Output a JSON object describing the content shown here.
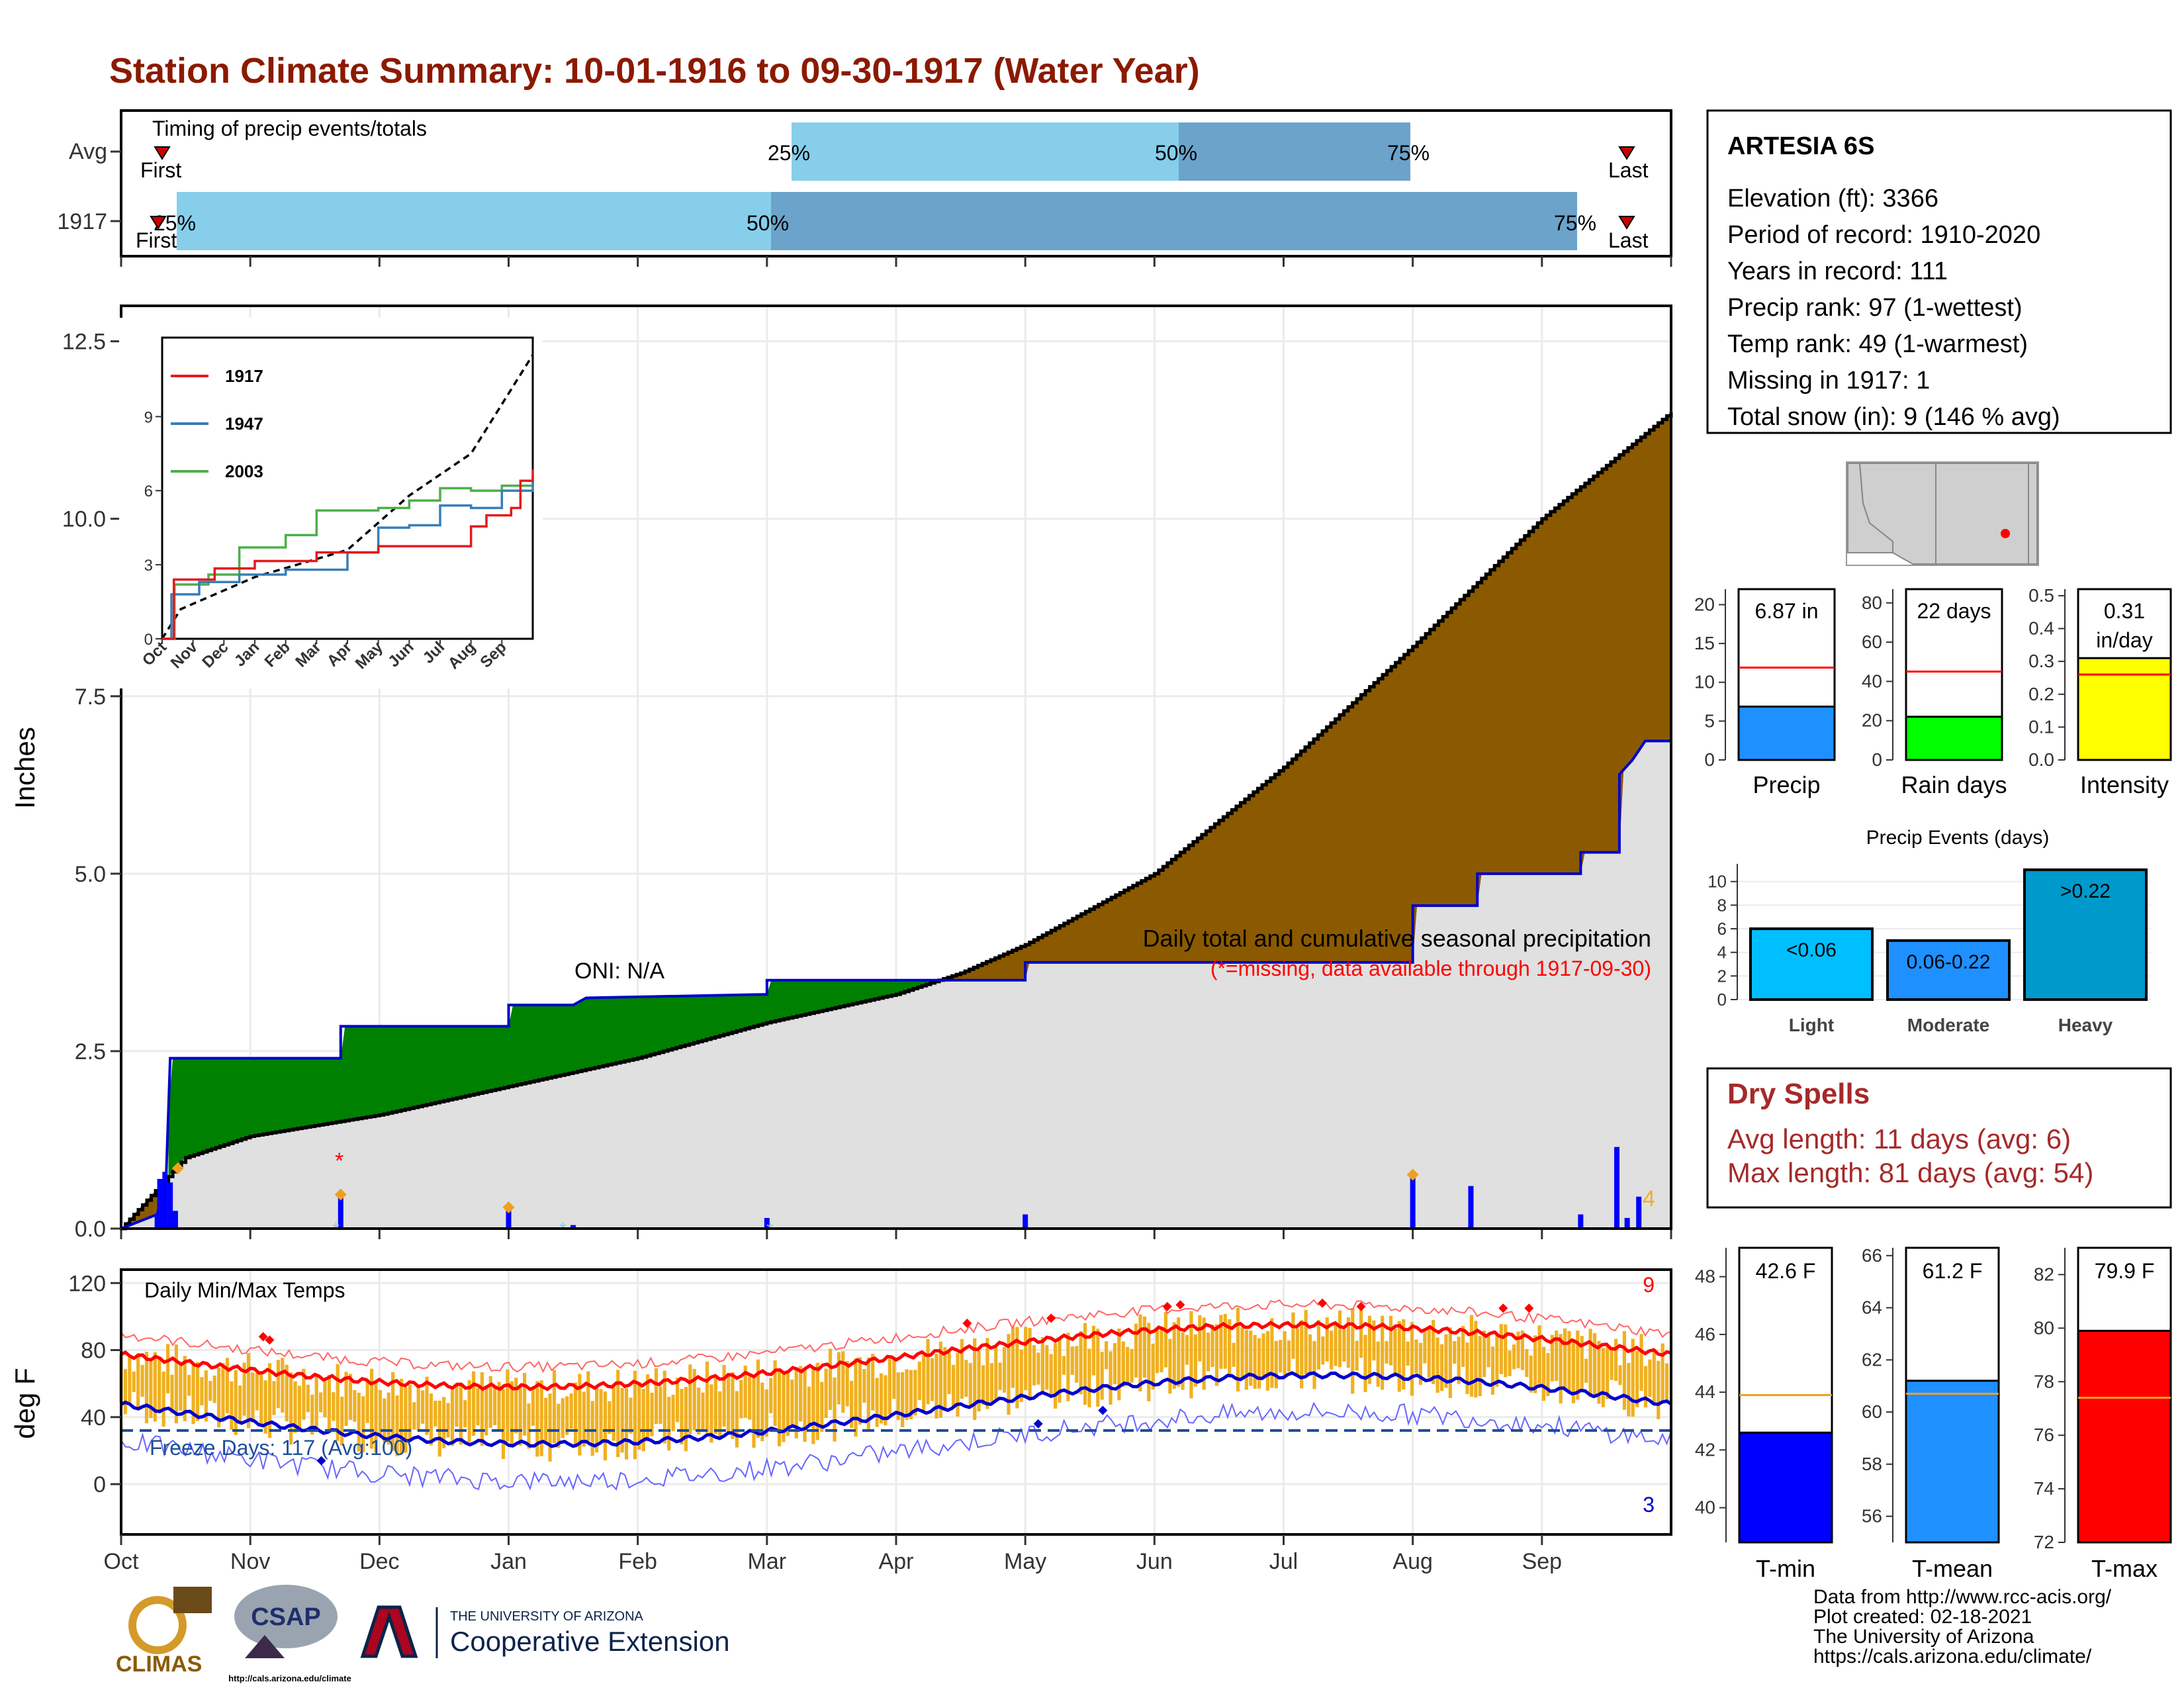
{
  "title": "Station Climate Summary: 10-01-1916 to 09-30-1917 (Water Year)",
  "colors": {
    "title": "#8B1A00",
    "light_blue": "#87CEEB",
    "mid_blue": "#6BA3CB",
    "brown": "#8B5A00",
    "green": "#008000",
    "gray_fill": "#E0E0E0",
    "blue_line": "#0000CC",
    "orange": "#F0B020",
    "red": "#FF0000",
    "dark_blue": "#0000FF",
    "dry_red": "#A52A2A"
  },
  "timing": {
    "label": "Timing of precip events/totals",
    "rows": [
      "Avg",
      "1917"
    ],
    "first_label": "First",
    "last_label": "Last",
    "avg_pct": [
      "25%",
      "50%",
      "75%"
    ],
    "y1917_pct": [
      "25%",
      "50%",
      "75%"
    ]
  },
  "months": [
    "Oct",
    "Nov",
    "Dec",
    "Jan",
    "Feb",
    "Mar",
    "Apr",
    "May",
    "Jun",
    "Jul",
    "Aug",
    "Sep"
  ],
  "precip_panel": {
    "ylabel": "Inches",
    "yticks": [
      "0.0",
      "2.5",
      "5.0",
      "7.5",
      "10.0",
      "12.5"
    ],
    "oni": "ONI: N/A",
    "note": "Daily total and cumulative seasonal precipitation",
    "missing_note": "(*=missing, data available through 1917-09-30)",
    "count_label": "4"
  },
  "inset": {
    "yticks": [
      "0",
      "3",
      "6",
      "9"
    ],
    "months": [
      "Oct",
      "Nov",
      "Dec",
      "Jan",
      "Feb",
      "Mar",
      "Apr",
      "May",
      "Jun",
      "Jul",
      "Aug",
      "Sep"
    ],
    "legend": [
      {
        "name": "1917",
        "color": "#E41A1C"
      },
      {
        "name": "1947",
        "color": "#377EB8"
      },
      {
        "name": "2003",
        "color": "#4DAF4A"
      }
    ]
  },
  "temp_panel": {
    "ylabel": "deg F",
    "yticks": [
      "0",
      "40",
      "80",
      "120"
    ],
    "title": "Daily Min/Max Temps",
    "freeze": "Freeze Days: 117 (Avg:100)",
    "max_count": "9",
    "min_count": "3"
  },
  "station": {
    "name": "ARTESIA 6S",
    "lines": [
      "Elevation (ft): 3366",
      "Period of record: 1910-2020",
      "Years in record: 111",
      "Precip rank: 97 (1-wettest)",
      "Temp rank: 49 (1-warmest)",
      "Missing in 1917: 1",
      "Total snow (in): 9 (146 % avg)"
    ]
  },
  "mini_bars": [
    {
      "label": "Precip",
      "value_text": "6.87 in",
      "yticks": [
        "0",
        "5",
        "10",
        "15",
        "20"
      ],
      "color": "#1E90FF"
    },
    {
      "label": "Rain days",
      "value_text": "22 days",
      "yticks": [
        "0",
        "20",
        "40",
        "60",
        "80"
      ],
      "color": "#00FF00"
    },
    {
      "label": "Intensity",
      "value_text": "0.31 in/day",
      "yticks": [
        "0.0",
        "0.1",
        "0.2",
        "0.3",
        "0.4",
        "0.5"
      ],
      "color": "#FFFF00"
    }
  ],
  "precip_events": {
    "title": "Precip Events (days)",
    "yticks": [
      "0",
      "2",
      "4",
      "6",
      "8",
      "10"
    ],
    "bars": [
      {
        "name": "Light",
        "label": "<0.06",
        "value": 6,
        "color": "#00BFFF"
      },
      {
        "name": "Moderate",
        "label": "0.06-0.22",
        "value": 5,
        "color": "#1E90FF"
      },
      {
        "name": "Heavy",
        "label": ">0.22",
        "value": 11,
        "color": "#0099CC"
      }
    ]
  },
  "dry_spells": {
    "title": "Dry Spells",
    "avg": "Avg length: 11 days (avg: 6)",
    "max": "Max length: 81 days (avg: 54)"
  },
  "temp_bars": [
    {
      "label": "T-min",
      "value_text": "42.6 F",
      "yticks": [
        "40",
        "42",
        "44",
        "46",
        "48"
      ],
      "color": "#0000FF"
    },
    {
      "label": "T-mean",
      "value_text": "61.2 F",
      "yticks": [
        "56",
        "58",
        "60",
        "62",
        "64",
        "66"
      ],
      "color": "#1E90FF"
    },
    {
      "label": "T-max",
      "value_text": "79.9 F",
      "yticks": [
        "72",
        "74",
        "76",
        "78",
        "80",
        "82"
      ],
      "color": "#FF0000"
    }
  ],
  "footer": {
    "lines": [
      "Data from http://www.rcc-acis.org/",
      "Plot created: 02-18-2021",
      "The University of Arizona",
      "https://cals.arizona.edu/climate/"
    ],
    "climas": "CLIMAS",
    "csap": "CSAP",
    "csap_url": "http://cals.arizona.edu/climate",
    "ua_small": "THE UNIVERSITY OF ARIZONA",
    "coop": "Cooperative Extension"
  },
  "chart_data": {
    "type": "area",
    "title": "Station Climate Summary: 10-01-1916 to 09-30-1917 (Water Year)",
    "ylabel": "Inches",
    "ylim": [
      0,
      12.5
    ],
    "x_months": [
      "Oct",
      "Nov",
      "Dec",
      "Jan",
      "Feb",
      "Mar",
      "Apr",
      "May",
      "Jun",
      "Jul",
      "Aug",
      "Sep"
    ],
    "series": [
      {
        "name": "1917",
        "points": [
          [
            0,
            0
          ],
          [
            0.28,
            0.2
          ],
          [
            0.35,
            0.8
          ],
          [
            0.38,
            2.4
          ],
          [
            1.7,
            2.4
          ],
          [
            1.7,
            2.85
          ],
          [
            3,
            2.85
          ],
          [
            3,
            3.15
          ],
          [
            3.5,
            3.15
          ],
          [
            3.6,
            3.25
          ],
          [
            5.0,
            3.3
          ],
          [
            5.0,
            3.5
          ],
          [
            7.0,
            3.5
          ],
          [
            7.0,
            3.75
          ],
          [
            10.0,
            3.75
          ],
          [
            10.0,
            4.55
          ],
          [
            10.5,
            4.55
          ],
          [
            10.5,
            5.0
          ],
          [
            11.3,
            5.0
          ],
          [
            11.3,
            5.3
          ],
          [
            11.6,
            5.3
          ],
          [
            11.6,
            6.4
          ],
          [
            11.7,
            6.6
          ],
          [
            11.8,
            6.87
          ],
          [
            12,
            6.87
          ]
        ]
      },
      {
        "name": "",
        "points": [
          [
            0,
            0
          ],
          [
            0.5,
            1.0
          ],
          [
            1.0,
            1.3
          ],
          [
            2.0,
            1.6
          ],
          [
            3.0,
            2.0
          ],
          [
            4.0,
            2.4
          ],
          [
            5.0,
            2.9
          ],
          [
            6.0,
            3.3
          ],
          [
            6.5,
            3.6
          ],
          [
            7.0,
            4.0
          ],
          [
            8.0,
            5.0
          ],
          [
            9.0,
            6.5
          ],
          [
            10.0,
            8.2
          ],
          [
            11.0,
            10.0
          ],
          [
            12,
            11.5
          ]
        ]
      }
    ]
  }
}
